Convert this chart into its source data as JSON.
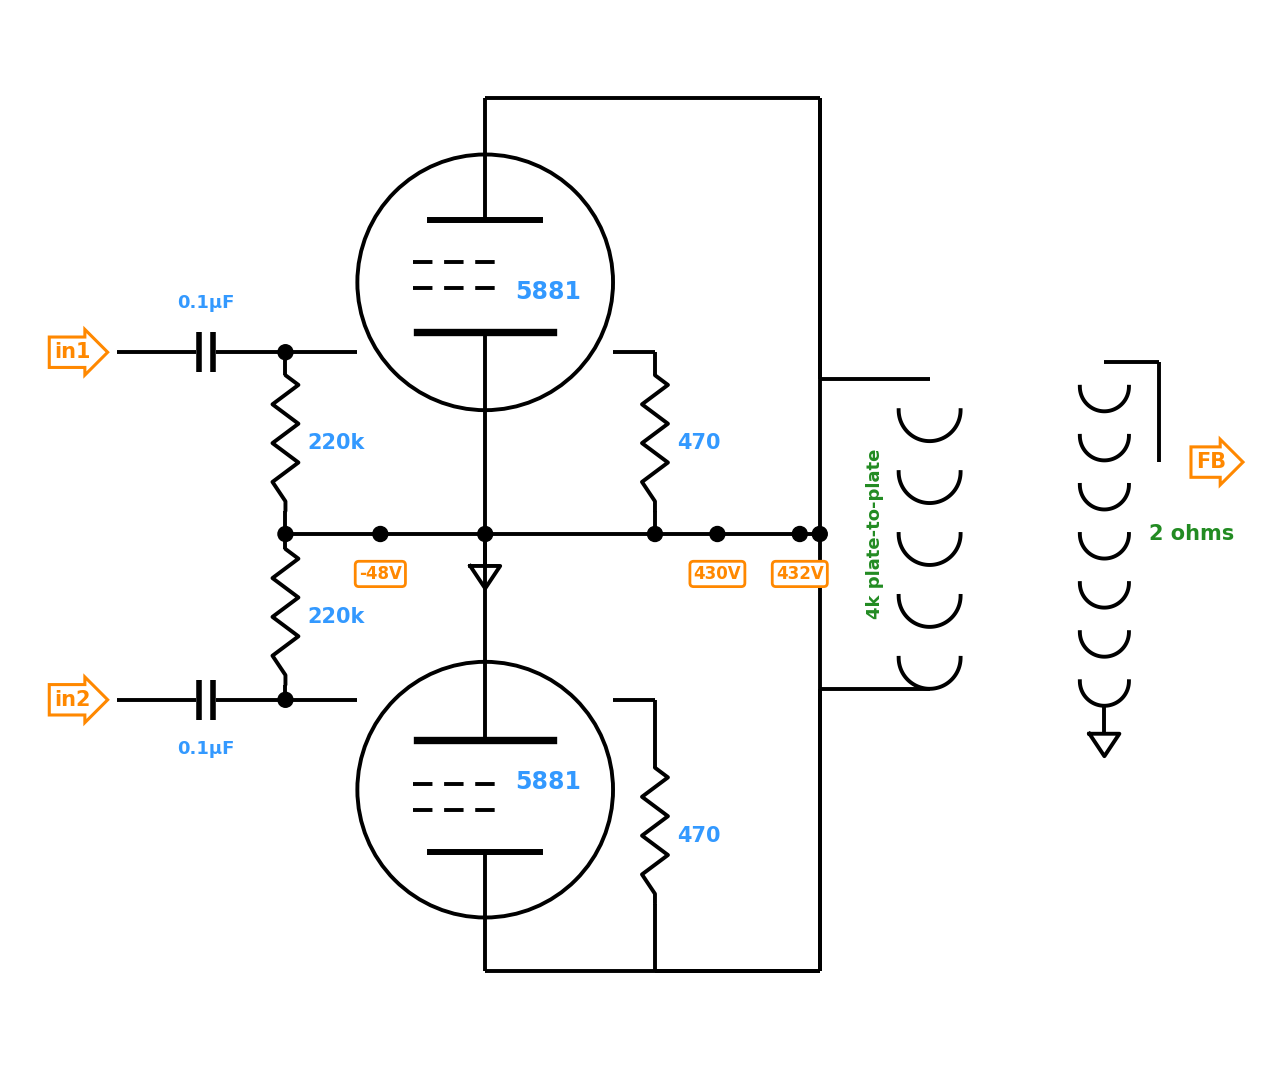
{
  "bg_color": "#ffffff",
  "lc": "#000000",
  "blue": "#3399ff",
  "orange": "#ff8800",
  "green": "#228B22",
  "lw": 2.8,
  "figsize": [
    12.7,
    10.72
  ],
  "dpi": 100,
  "labels": {
    "in1": "in1",
    "in2": "in2",
    "cap1": "0.1μF",
    "cap2": "0.1μF",
    "r1": "220k",
    "r2": "220k",
    "r_s1": "470",
    "r_s2": "470",
    "tube1": "5881",
    "tube2": "5881",
    "v48": "-48V",
    "v430": "430V",
    "v432": "432V",
    "fb": "FB",
    "ohms": "2 ohms",
    "transformer": "4k plate-to-plate"
  }
}
